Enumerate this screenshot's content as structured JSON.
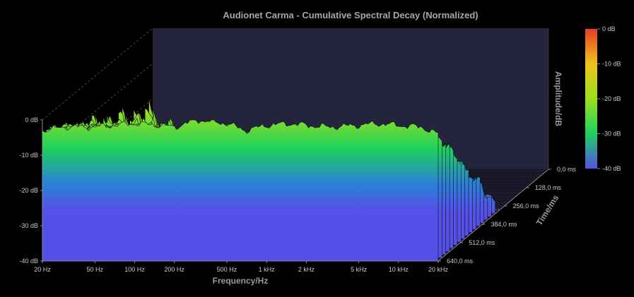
{
  "chart_data": {
    "type": "area",
    "title": "Audionet Carma - Cumulative Spectral Decay (Normalized)",
    "xlabel": "Frequency/Hz",
    "ylabel": "Amplitude/dB",
    "zlabel": "Time/ms",
    "x_scale": "log",
    "xlim": [
      20,
      20000
    ],
    "ylim": [
      -40,
      0
    ],
    "zlim": [
      0,
      640
    ],
    "x_ticks": [
      "20 Hz",
      "50 Hz",
      "100 Hz",
      "200 Hz",
      "500 Hz",
      "1 kHz",
      "2 kHz",
      "5 kHz",
      "10 kHz",
      "20 kHz"
    ],
    "x_tick_values": [
      20,
      50,
      100,
      200,
      500,
      1000,
      2000,
      5000,
      10000,
      20000
    ],
    "y_ticks": [
      "0 dB",
      "-10 dB",
      "-20 dB",
      "-30 dB",
      "-40 dB"
    ],
    "y_tick_values": [
      0,
      -10,
      -20,
      -30,
      -40
    ],
    "z_ticks": [
      "0,0 ms",
      "128,0 ms",
      "256,0 ms",
      "384,0 ms",
      "512,0 ms",
      "640,0 ms"
    ],
    "z_tick_values": [
      0,
      128,
      256,
      384,
      512,
      640
    ],
    "colorbar": {
      "ticks": [
        "0 dB",
        "-10 dB",
        "-20 dB",
        "-30 dB",
        "-40 dB"
      ],
      "values": [
        0,
        -10,
        -20,
        -30,
        -40
      ],
      "colors": [
        "#e83b2a",
        "#f0c21a",
        "#9be01c",
        "#1dd060",
        "#5550e8"
      ]
    },
    "slice_count": 30,
    "slice_time_step_ms": 21.33,
    "front_slice_freq": [
      20,
      30,
      50,
      70,
      100,
      150,
      200,
      300,
      500,
      700,
      1000,
      1500,
      2000,
      3000,
      5000,
      7000,
      10000,
      15000,
      20000
    ],
    "front_slice_db": [
      -3,
      -2,
      -2,
      -1.5,
      -1,
      -1.5,
      -2,
      0,
      -1,
      -3,
      -1.5,
      -1,
      -1.5,
      -2,
      -1.5,
      -1,
      -1.5,
      -2,
      -4
    ],
    "grid": true,
    "legend": "colorbar-right"
  },
  "colors": {
    "background": "#000000",
    "floor": "#24243c",
    "text": "#c8c8c8"
  }
}
